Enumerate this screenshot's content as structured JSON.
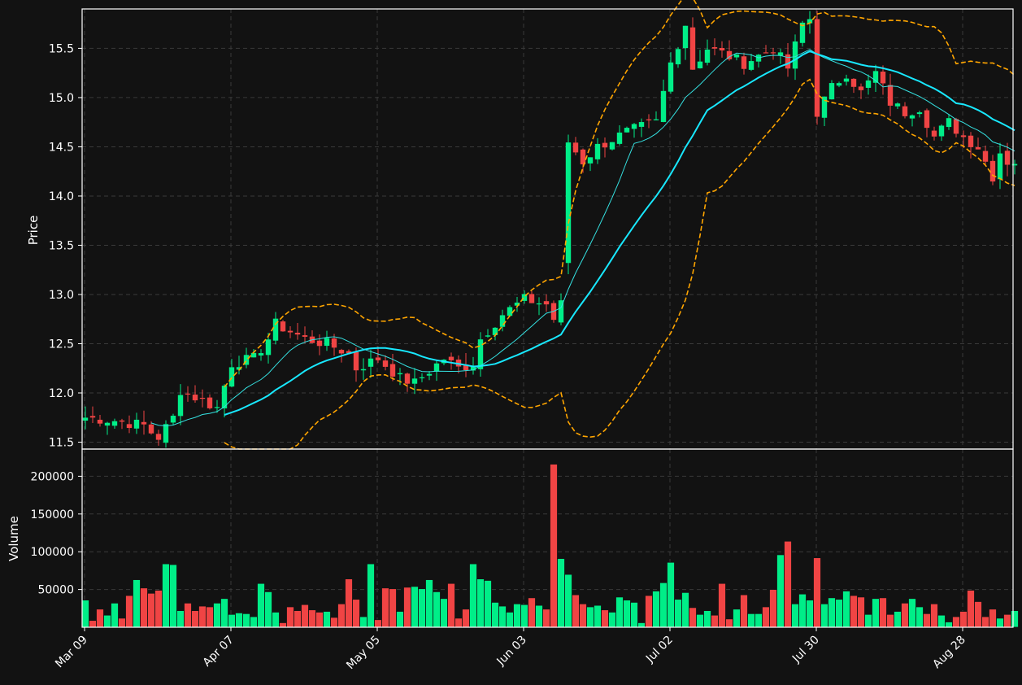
{
  "chart_data": {
    "type": "candlestick",
    "colors": {
      "background": "#121212",
      "up": "#00ee88",
      "down": "#f04444",
      "ma_fast": "#35e0e0",
      "ma_slow": "#18e8ff",
      "bollinger": "#ffa500",
      "grid": "#3a3a3a",
      "text": "#ffffff"
    },
    "grid": true,
    "price_panel": {
      "ylabel": "Price",
      "ylim": [
        11.43,
        15.9
      ],
      "yticks": [
        "11.5",
        "12.0",
        "12.5",
        "13.0",
        "13.5",
        "14.0",
        "14.5",
        "15.0",
        "15.5"
      ]
    },
    "volume_panel": {
      "ylabel": "Volume",
      "ylim": [
        0,
        236000
      ],
      "yticks": [
        "50000",
        "100000",
        "150000",
        "200000"
      ]
    },
    "x_ticks": [
      {
        "label": "Mar 09",
        "index": 0
      },
      {
        "label": "Apr 07",
        "index": 20
      },
      {
        "label": "May 05",
        "index": 40
      },
      {
        "label": "Jun 03",
        "index": 60
      },
      {
        "label": "Jul 02",
        "index": 80
      },
      {
        "label": "Jul 30",
        "index": 100
      },
      {
        "label": "Aug 28",
        "index": 120
      }
    ],
    "series_names": [
      "OHLC",
      "MA fast",
      "MA slow",
      "Bollinger upper",
      "Bollinger lower",
      "Volume"
    ],
    "anchors": {
      "close": [
        [
          0,
          11.75
        ],
        [
          4,
          11.72
        ],
        [
          8,
          11.67
        ],
        [
          9,
          11.6
        ],
        [
          10,
          11.55
        ],
        [
          12,
          11.75
        ],
        [
          13,
          12.03
        ],
        [
          16,
          11.92
        ],
        [
          18,
          11.85
        ],
        [
          20,
          12.3
        ],
        [
          23,
          12.35
        ],
        [
          25,
          12.55
        ],
        [
          26,
          12.7
        ],
        [
          30,
          12.55
        ],
        [
          33,
          12.5
        ],
        [
          36,
          12.4
        ],
        [
          37,
          12.25
        ],
        [
          40,
          12.35
        ],
        [
          43,
          12.15
        ],
        [
          45,
          12.1
        ],
        [
          49,
          12.35
        ],
        [
          51,
          12.25
        ],
        [
          53,
          12.3
        ],
        [
          54,
          12.55
        ],
        [
          57,
          12.8
        ],
        [
          60,
          12.95
        ],
        [
          63,
          12.9
        ],
        [
          64,
          12.75
        ],
        [
          65,
          12.9
        ],
        [
          66,
          14.55
        ],
        [
          68,
          14.35
        ],
        [
          70,
          14.5
        ],
        [
          74,
          14.65
        ],
        [
          78,
          14.75
        ],
        [
          80,
          15.35
        ],
        [
          82,
          15.75
        ],
        [
          83,
          15.3
        ],
        [
          85,
          15.5
        ],
        [
          87,
          15.45
        ],
        [
          90,
          15.35
        ],
        [
          94,
          15.5
        ],
        [
          96,
          15.3
        ],
        [
          98,
          15.75
        ],
        [
          99,
          15.8
        ],
        [
          100,
          14.85
        ],
        [
          102,
          15.1
        ],
        [
          104,
          15.25
        ],
        [
          106,
          15.05
        ],
        [
          108,
          15.25
        ],
        [
          110,
          14.95
        ],
        [
          112,
          14.85
        ],
        [
          114,
          14.9
        ],
        [
          116,
          14.6
        ],
        [
          118,
          14.75
        ],
        [
          120,
          14.6
        ],
        [
          122,
          14.5
        ],
        [
          124,
          14.2
        ],
        [
          125,
          14.45
        ],
        [
          126,
          14.35
        ]
      ],
      "volume": [
        [
          0,
          36000
        ],
        [
          1,
          9000
        ],
        [
          2,
          24000
        ],
        [
          3,
          16000
        ],
        [
          4,
          32000
        ],
        [
          5,
          12000
        ],
        [
          6,
          42000
        ],
        [
          7,
          63000
        ],
        [
          8,
          52000
        ],
        [
          9,
          45000
        ],
        [
          10,
          49000
        ],
        [
          11,
          84000
        ],
        [
          12,
          83000
        ],
        [
          13,
          22000
        ],
        [
          14,
          32000
        ],
        [
          15,
          22000
        ],
        [
          16,
          28000
        ],
        [
          17,
          27000
        ],
        [
          18,
          32000
        ],
        [
          19,
          38000
        ],
        [
          20,
          17000
        ],
        [
          21,
          19000
        ],
        [
          22,
          18000
        ],
        [
          23,
          14000
        ],
        [
          24,
          58000
        ],
        [
          25,
          47000
        ],
        [
          26,
          20000
        ],
        [
          27,
          6000
        ],
        [
          28,
          27000
        ],
        [
          29,
          22000
        ],
        [
          30,
          30000
        ],
        [
          31,
          23000
        ],
        [
          32,
          20000
        ],
        [
          33,
          21000
        ],
        [
          34,
          13000
        ],
        [
          35,
          31000
        ],
        [
          36,
          64000
        ],
        [
          37,
          37000
        ],
        [
          38,
          14000
        ],
        [
          39,
          84000
        ],
        [
          40,
          10000
        ],
        [
          41,
          52000
        ],
        [
          42,
          51000
        ],
        [
          43,
          21000
        ],
        [
          44,
          53000
        ],
        [
          45,
          54000
        ],
        [
          46,
          51000
        ],
        [
          47,
          63000
        ],
        [
          48,
          47000
        ],
        [
          49,
          38000
        ],
        [
          50,
          58000
        ],
        [
          51,
          12000
        ],
        [
          52,
          24000
        ],
        [
          53,
          84000
        ],
        [
          54,
          64000
        ],
        [
          55,
          62000
        ],
        [
          56,
          33000
        ],
        [
          57,
          28000
        ],
        [
          58,
          20000
        ],
        [
          59,
          31000
        ],
        [
          60,
          30000
        ],
        [
          61,
          39000
        ],
        [
          62,
          29000
        ],
        [
          63,
          24000
        ],
        [
          64,
          216000
        ],
        [
          65,
          91000
        ],
        [
          66,
          70000
        ],
        [
          67,
          43000
        ],
        [
          68,
          31000
        ],
        [
          69,
          27000
        ],
        [
          70,
          29000
        ],
        [
          71,
          23000
        ],
        [
          72,
          20000
        ],
        [
          73,
          40000
        ],
        [
          74,
          36000
        ],
        [
          75,
          33000
        ],
        [
          76,
          6000
        ],
        [
          77,
          42000
        ],
        [
          78,
          48000
        ],
        [
          79,
          59000
        ],
        [
          80,
          86000
        ],
        [
          81,
          37000
        ],
        [
          82,
          46000
        ],
        [
          83,
          26000
        ],
        [
          84,
          17000
        ],
        [
          85,
          22000
        ],
        [
          86,
          16000
        ],
        [
          87,
          58000
        ],
        [
          88,
          11000
        ],
        [
          89,
          24000
        ],
        [
          90,
          43000
        ],
        [
          91,
          18000
        ],
        [
          92,
          18000
        ],
        [
          93,
          27000
        ],
        [
          94,
          50000
        ],
        [
          95,
          96000
        ],
        [
          96,
          114000
        ],
        [
          97,
          31000
        ],
        [
          98,
          44000
        ],
        [
          99,
          36000
        ],
        [
          100,
          92000
        ],
        [
          101,
          31000
        ],
        [
          102,
          39000
        ],
        [
          103,
          37000
        ],
        [
          104,
          48000
        ],
        [
          105,
          42000
        ],
        [
          106,
          40000
        ],
        [
          107,
          17000
        ],
        [
          108,
          38000
        ],
        [
          109,
          39000
        ],
        [
          110,
          17000
        ],
        [
          111,
          21000
        ],
        [
          112,
          32000
        ],
        [
          113,
          38000
        ],
        [
          114,
          27000
        ],
        [
          115,
          18000
        ],
        [
          116,
          31000
        ],
        [
          117,
          16000
        ],
        [
          118,
          7000
        ],
        [
          119,
          14000
        ],
        [
          120,
          21000
        ],
        [
          121,
          49000
        ],
        [
          122,
          34000
        ],
        [
          123,
          14000
        ],
        [
          124,
          24000
        ],
        [
          125,
          12000
        ],
        [
          126,
          17000
        ],
        [
          127,
          22000
        ]
      ]
    },
    "n_bars": 128
  }
}
